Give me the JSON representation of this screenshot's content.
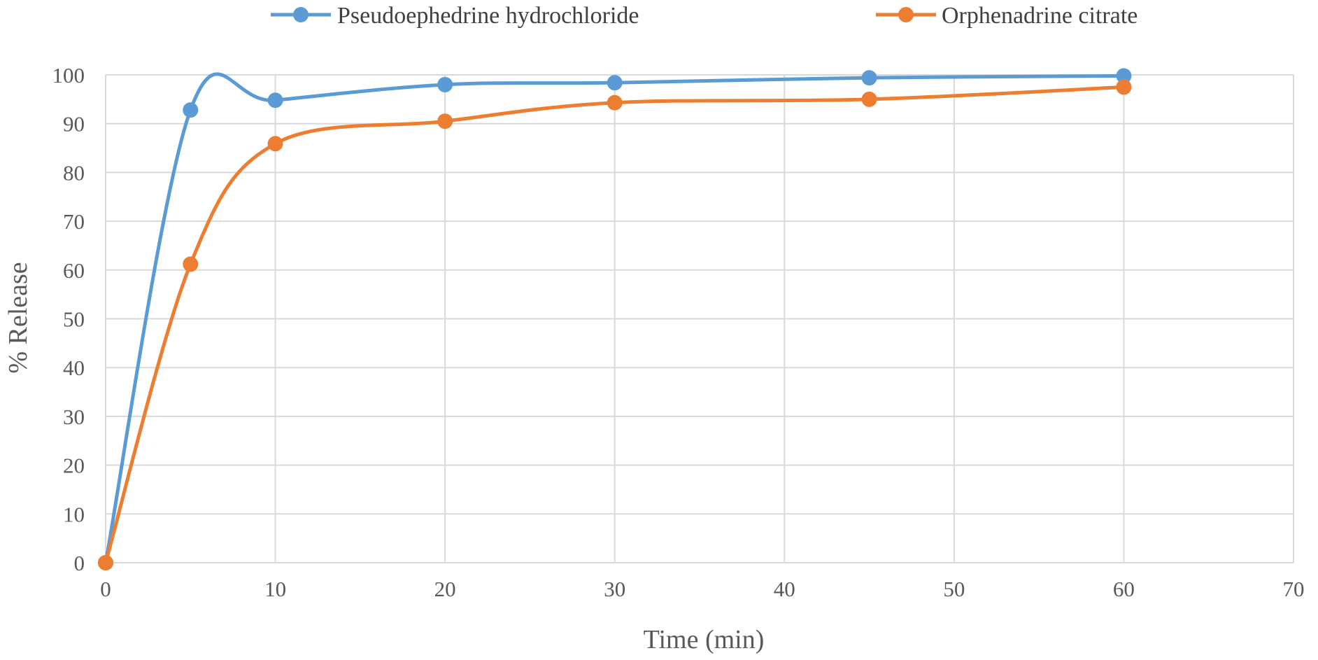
{
  "chart_data": {
    "type": "line",
    "xlabel": "Time (min)",
    "ylabel": "% Release",
    "xlim": [
      0,
      70
    ],
    "ylim": [
      0,
      100
    ],
    "x_ticks": [
      0,
      10,
      20,
      30,
      40,
      50,
      60,
      70
    ],
    "y_ticks": [
      0,
      10,
      20,
      30,
      40,
      50,
      60,
      70,
      80,
      90,
      100
    ],
    "grid": true,
    "smooth": true,
    "legend_position": "top",
    "x": [
      0,
      5,
      10,
      20,
      30,
      45,
      60
    ],
    "series": [
      {
        "name": "Pseudoephedrine hydrochloride",
        "color": "#5b9bd5",
        "values": [
          0,
          92.8,
          94.8,
          98.0,
          98.4,
          99.4,
          99.8
        ]
      },
      {
        "name": "Orphenadrine citrate",
        "color": "#ed7d31",
        "values": [
          0,
          61.2,
          85.9,
          90.5,
          94.3,
          95.0,
          97.5
        ]
      }
    ]
  }
}
